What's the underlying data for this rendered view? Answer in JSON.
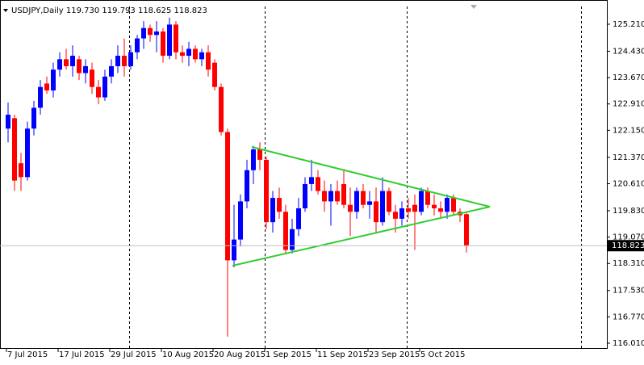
{
  "chart_data": {
    "type": "candlestick",
    "title": "USDJPY,Daily 119.730 119.793 118.625 118.823",
    "categories": [
      "7 Jul 2015",
      null,
      null,
      null,
      null,
      null,
      null,
      null,
      "17 Jul 2015",
      null,
      null,
      null,
      null,
      null,
      null,
      null,
      "29 Jul 2015",
      null,
      null,
      null,
      null,
      null,
      null,
      null,
      "10 Aug 2015",
      null,
      null,
      null,
      null,
      null,
      null,
      null,
      "20 Aug 2015",
      null,
      null,
      null,
      null,
      null,
      null,
      null,
      "1 Sep 2015",
      null,
      null,
      null,
      null,
      null,
      null,
      null,
      "11 Sep 2015",
      null,
      null,
      null,
      null,
      null,
      null,
      null,
      "23 Sep 2015",
      null,
      null,
      null,
      null,
      null,
      null,
      null,
      "5 Oct 2015",
      null,
      null,
      null,
      null,
      null,
      null,
      null
    ],
    "open": [
      122.2,
      122.5,
      121.2,
      120.8,
      122.2,
      122.8,
      123.5,
      123.3,
      123.9,
      124.2,
      124.0,
      124.2,
      123.8,
      123.9,
      123.4,
      123.1,
      123.7,
      124.0,
      124.3,
      124.0,
      124.4,
      124.8,
      125.1,
      124.9,
      125.0,
      124.3,
      125.2,
      124.4,
      124.3,
      124.5,
      124.2,
      124.4,
      124.1,
      123.4,
      122.1,
      118.4,
      119.0,
      120.1,
      121.0,
      121.6,
      121.3,
      119.5,
      120.2,
      119.8,
      118.7,
      119.3,
      119.9,
      120.6,
      120.8,
      120.4,
      120.1,
      120.4,
      120.6,
      120.0,
      119.8,
      120.4,
      120.0,
      120.1,
      119.5,
      120.4,
      119.8,
      119.6,
      119.9,
      120.0,
      119.8,
      120.4,
      120.0,
      119.9,
      119.8,
      120.2,
      119.8,
      119.73
    ],
    "high": [
      122.95,
      122.6,
      121.5,
      122.4,
      123.0,
      123.6,
      123.7,
      124.1,
      124.4,
      124.5,
      124.6,
      124.3,
      124.2,
      124.1,
      123.6,
      123.9,
      124.2,
      124.6,
      124.8,
      124.6,
      124.9,
      125.3,
      125.2,
      125.3,
      125.1,
      125.4,
      125.3,
      124.6,
      124.7,
      124.6,
      124.5,
      124.6,
      124.2,
      123.5,
      122.2,
      120.0,
      120.3,
      121.3,
      121.7,
      121.8,
      121.4,
      120.4,
      120.5,
      120.0,
      119.6,
      120.2,
      120.8,
      121.3,
      121.0,
      120.7,
      120.6,
      120.7,
      121.0,
      120.5,
      120.5,
      120.6,
      120.4,
      120.5,
      120.8,
      120.5,
      120.0,
      120.1,
      120.2,
      120.3,
      120.5,
      120.5,
      120.3,
      120.1,
      120.3,
      120.3,
      119.9,
      119.793
    ],
    "low": [
      121.8,
      120.4,
      120.4,
      120.7,
      122.0,
      122.6,
      123.2,
      123.1,
      123.7,
      123.9,
      123.7,
      123.6,
      123.5,
      123.2,
      122.9,
      123.0,
      123.5,
      123.8,
      123.7,
      123.9,
      124.2,
      124.5,
      124.7,
      124.4,
      124.1,
      124.2,
      124.2,
      124.1,
      124.0,
      124.1,
      124.0,
      123.7,
      123.3,
      122.0,
      116.2,
      118.2,
      118.8,
      119.9,
      120.6,
      121.0,
      119.3,
      119.2,
      119.6,
      118.6,
      118.6,
      119.1,
      119.8,
      120.4,
      120.3,
      119.8,
      119.4,
      120.0,
      119.9,
      119.1,
      119.6,
      119.9,
      119.6,
      119.2,
      119.4,
      119.7,
      119.2,
      119.4,
      119.6,
      118.7,
      119.7,
      119.9,
      119.7,
      119.6,
      119.6,
      119.7,
      119.5,
      118.625
    ],
    "close": [
      122.6,
      120.7,
      120.8,
      122.2,
      122.8,
      123.4,
      123.3,
      123.9,
      124.2,
      124.0,
      124.3,
      123.8,
      124.0,
      123.4,
      123.1,
      123.7,
      124.0,
      124.3,
      124.0,
      124.4,
      124.8,
      125.1,
      124.9,
      125.0,
      124.3,
      125.2,
      124.4,
      124.3,
      124.5,
      124.2,
      124.4,
      123.9,
      123.4,
      122.1,
      118.4,
      119.0,
      120.1,
      121.0,
      121.6,
      121.3,
      119.5,
      120.2,
      119.8,
      118.7,
      119.3,
      119.9,
      120.6,
      120.8,
      120.4,
      120.1,
      120.4,
      120.1,
      120.0,
      119.8,
      120.4,
      120.0,
      120.1,
      119.5,
      120.4,
      119.8,
      119.6,
      119.9,
      119.8,
      119.8,
      120.4,
      120.0,
      119.9,
      119.8,
      120.2,
      119.8,
      119.7,
      118.823
    ],
    "up_color": "#0000ff",
    "down_color": "#ff0000",
    "ylim": [
      115.847,
      125.722
    ],
    "yticks": [
      {
        "value": 125.21,
        "label": "125.210"
      },
      {
        "value": 124.43,
        "label": "124.430"
      },
      {
        "value": 123.67,
        "label": "123.670"
      },
      {
        "value": 122.91,
        "label": "122.910"
      },
      {
        "value": 122.15,
        "label": "122.150"
      },
      {
        "value": 121.37,
        "label": "121.370"
      },
      {
        "value": 120.61,
        "label": "120.610"
      },
      {
        "value": 119.83,
        "label": "119.830"
      },
      {
        "value": 119.07,
        "label": "119.070"
      },
      {
        "value": 118.31,
        "label": "118.310"
      },
      {
        "value": 117.53,
        "label": "117.530"
      },
      {
        "value": 116.77,
        "label": "116.770"
      },
      {
        "value": 116.01,
        "label": "116.010"
      }
    ],
    "current_price": 118.823
  }
}
